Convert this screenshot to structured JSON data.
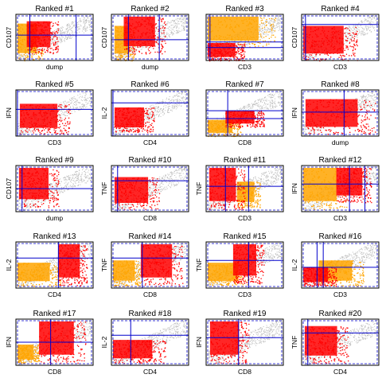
{
  "colors": {
    "background_events": "#bebebe",
    "gate_fill_a": "#ff0000",
    "gate_fill_b": "#ffa500",
    "gate_lines": "#0000cc",
    "frame": "#000000"
  },
  "chart_data": [
    {
      "type": "scatter",
      "title": "Ranked #1",
      "xlabel": "dump",
      "ylabel": "CD107",
      "grid": false
    },
    {
      "type": "scatter",
      "title": "Ranked #2",
      "xlabel": "dump",
      "ylabel": "CD107",
      "grid": false
    },
    {
      "type": "scatter",
      "title": "Ranked #3",
      "xlabel": "CD3",
      "ylabel": "",
      "grid": false
    },
    {
      "type": "scatter",
      "title": "Ranked #4",
      "xlabel": "CD3",
      "ylabel": "CD107",
      "grid": false
    },
    {
      "type": "scatter",
      "title": "Ranked #5",
      "xlabel": "CD3",
      "ylabel": "IFN",
      "grid": false
    },
    {
      "type": "scatter",
      "title": "Ranked #6",
      "xlabel": "CD4",
      "ylabel": "IL-2",
      "grid": false
    },
    {
      "type": "scatter",
      "title": "Ranked #7",
      "xlabel": "CD8",
      "ylabel": "",
      "grid": false
    },
    {
      "type": "scatter",
      "title": "Ranked #8",
      "xlabel": "dump",
      "ylabel": "IFN",
      "grid": false
    },
    {
      "type": "scatter",
      "title": "Ranked #9",
      "xlabel": "dump",
      "ylabel": "CD107",
      "grid": false
    },
    {
      "type": "scatter",
      "title": "Ranked #10",
      "xlabel": "CD8",
      "ylabel": "TNF",
      "grid": false
    },
    {
      "type": "scatter",
      "title": "Ranked #11",
      "xlabel": "CD3",
      "ylabel": "TNF",
      "grid": false
    },
    {
      "type": "scatter",
      "title": "Ranked #12",
      "xlabel": "CD3",
      "ylabel": "IFN",
      "grid": false
    },
    {
      "type": "scatter",
      "title": "Ranked #13",
      "xlabel": "CD4",
      "ylabel": "IL-2",
      "grid": false
    },
    {
      "type": "scatter",
      "title": "Ranked #14",
      "xlabel": "CD8",
      "ylabel": "TNF",
      "grid": false
    },
    {
      "type": "scatter",
      "title": "Ranked #15",
      "xlabel": "CD3",
      "ylabel": "TNF",
      "grid": false
    },
    {
      "type": "scatter",
      "title": "Ranked #16",
      "xlabel": "CD3",
      "ylabel": "IL-2",
      "grid": false
    },
    {
      "type": "scatter",
      "title": "Ranked #17",
      "xlabel": "CD8",
      "ylabel": "IFN",
      "grid": false
    },
    {
      "type": "scatter",
      "title": "Ranked #18",
      "xlabel": "CD4",
      "ylabel": "IL-2",
      "grid": false
    },
    {
      "type": "scatter",
      "title": "Ranked #19",
      "xlabel": "CD8",
      "ylabel": "IFN",
      "grid": false
    },
    {
      "type": "scatter",
      "title": "Ranked #20",
      "xlabel": "CD4",
      "ylabel": "TNF",
      "grid": false
    }
  ]
}
